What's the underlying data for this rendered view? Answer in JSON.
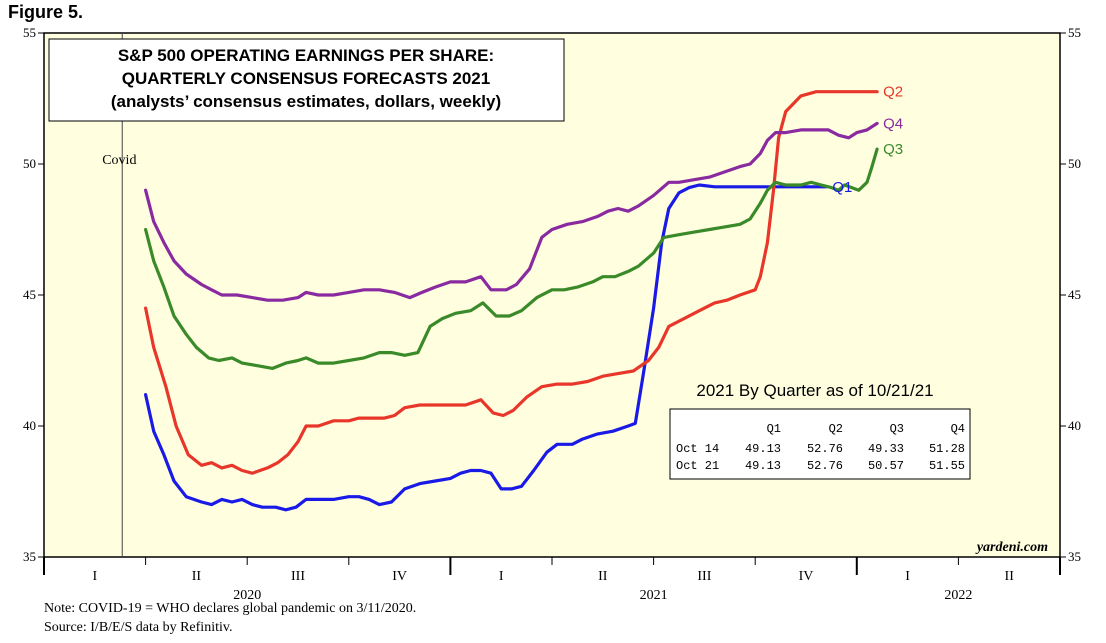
{
  "figure_label": "Figure 5.",
  "colors": {
    "q1": "#1a1ae6",
    "q2": "#e8372a",
    "q3": "#3a8a2a",
    "q4": "#8a2aa0",
    "plot_bg": "#ffffe0"
  },
  "chart_data": {
    "type": "line",
    "title_lines": [
      "S&P 500 OPERATING EARNINGS PER SHARE:",
      "QUARTERLY CONSENSUS FORECASTS 2021",
      "(analysts’ consensus estimates, dollars, weekly)"
    ],
    "ylim": [
      35,
      55
    ],
    "yticks": [
      35,
      40,
      45,
      50,
      55
    ],
    "x_unit": "quarter index (0 = start of Q1 2020)",
    "xlim": [
      0,
      10
    ],
    "quarter_labels": [
      "I",
      "II",
      "III",
      "IV",
      "I",
      "II",
      "III",
      "IV",
      "I",
      "II"
    ],
    "year_labels": [
      {
        "label": "2020",
        "x": 2
      },
      {
        "label": "2021",
        "x": 6
      },
      {
        "label": "2022",
        "x": 9
      }
    ],
    "annotation": {
      "text": "Covid",
      "x": 0.77
    },
    "watermark": "yardeni.com",
    "series": [
      {
        "name": "Q1",
        "color_key": "q1",
        "points": [
          [
            1.0,
            41.2
          ],
          [
            1.08,
            39.8
          ],
          [
            1.18,
            38.9
          ],
          [
            1.28,
            37.9
          ],
          [
            1.4,
            37.3
          ],
          [
            1.55,
            37.1
          ],
          [
            1.65,
            37.0
          ],
          [
            1.75,
            37.2
          ],
          [
            1.85,
            37.1
          ],
          [
            1.95,
            37.2
          ],
          [
            2.05,
            37.0
          ],
          [
            2.15,
            36.9
          ],
          [
            2.28,
            36.9
          ],
          [
            2.38,
            36.8
          ],
          [
            2.48,
            36.9
          ],
          [
            2.58,
            37.2
          ],
          [
            2.7,
            37.2
          ],
          [
            2.85,
            37.2
          ],
          [
            3.0,
            37.3
          ],
          [
            3.1,
            37.3
          ],
          [
            3.2,
            37.2
          ],
          [
            3.3,
            37.0
          ],
          [
            3.42,
            37.1
          ],
          [
            3.55,
            37.6
          ],
          [
            3.7,
            37.8
          ],
          [
            3.85,
            37.9
          ],
          [
            4.0,
            38.0
          ],
          [
            4.1,
            38.2
          ],
          [
            4.2,
            38.3
          ],
          [
            4.3,
            38.3
          ],
          [
            4.4,
            38.2
          ],
          [
            4.5,
            37.6
          ],
          [
            4.6,
            37.6
          ],
          [
            4.7,
            37.7
          ],
          [
            4.82,
            38.3
          ],
          [
            4.95,
            39.0
          ],
          [
            5.05,
            39.3
          ],
          [
            5.2,
            39.3
          ],
          [
            5.3,
            39.5
          ],
          [
            5.45,
            39.7
          ],
          [
            5.6,
            39.8
          ],
          [
            5.75,
            40.0
          ],
          [
            5.82,
            40.1
          ],
          [
            5.9,
            42.0
          ],
          [
            6.0,
            44.5
          ],
          [
            6.08,
            47.0
          ],
          [
            6.15,
            48.3
          ],
          [
            6.25,
            48.9
          ],
          [
            6.35,
            49.1
          ],
          [
            6.45,
            49.2
          ],
          [
            6.6,
            49.13
          ],
          [
            6.8,
            49.13
          ],
          [
            7.0,
            49.13
          ],
          [
            7.2,
            49.13
          ],
          [
            7.45,
            49.13
          ],
          [
            7.6,
            49.13
          ],
          [
            7.7,
            49.13
          ]
        ]
      },
      {
        "name": "Q2",
        "color_key": "q2",
        "points": [
          [
            1.0,
            44.5
          ],
          [
            1.08,
            43.0
          ],
          [
            1.2,
            41.5
          ],
          [
            1.3,
            40.0
          ],
          [
            1.42,
            38.9
          ],
          [
            1.55,
            38.5
          ],
          [
            1.65,
            38.6
          ],
          [
            1.75,
            38.4
          ],
          [
            1.85,
            38.5
          ],
          [
            1.95,
            38.3
          ],
          [
            2.05,
            38.2
          ],
          [
            2.2,
            38.4
          ],
          [
            2.3,
            38.6
          ],
          [
            2.4,
            38.9
          ],
          [
            2.5,
            39.4
          ],
          [
            2.58,
            40.0
          ],
          [
            2.7,
            40.0
          ],
          [
            2.85,
            40.2
          ],
          [
            3.0,
            40.2
          ],
          [
            3.1,
            40.3
          ],
          [
            3.2,
            40.3
          ],
          [
            3.35,
            40.3
          ],
          [
            3.45,
            40.4
          ],
          [
            3.55,
            40.7
          ],
          [
            3.7,
            40.8
          ],
          [
            3.85,
            40.8
          ],
          [
            4.0,
            40.8
          ],
          [
            4.15,
            40.8
          ],
          [
            4.3,
            41.0
          ],
          [
            4.42,
            40.5
          ],
          [
            4.52,
            40.4
          ],
          [
            4.62,
            40.6
          ],
          [
            4.75,
            41.1
          ],
          [
            4.9,
            41.5
          ],
          [
            5.05,
            41.6
          ],
          [
            5.2,
            41.6
          ],
          [
            5.35,
            41.7
          ],
          [
            5.5,
            41.9
          ],
          [
            5.65,
            42.0
          ],
          [
            5.8,
            42.1
          ],
          [
            5.95,
            42.5
          ],
          [
            6.05,
            43.0
          ],
          [
            6.15,
            43.8
          ],
          [
            6.3,
            44.1
          ],
          [
            6.45,
            44.4
          ],
          [
            6.6,
            44.7
          ],
          [
            6.72,
            44.8
          ],
          [
            6.85,
            45.0
          ],
          [
            7.0,
            45.2
          ],
          [
            7.05,
            45.7
          ],
          [
            7.12,
            47.0
          ],
          [
            7.18,
            49.0
          ],
          [
            7.23,
            51.0
          ],
          [
            7.3,
            52.0
          ],
          [
            7.45,
            52.6
          ],
          [
            7.6,
            52.76
          ],
          [
            7.75,
            52.76
          ],
          [
            7.9,
            52.76
          ],
          [
            8.1,
            52.76
          ],
          [
            8.2,
            52.76
          ]
        ]
      },
      {
        "name": "Q3",
        "color_key": "q3",
        "points": [
          [
            1.0,
            47.5
          ],
          [
            1.08,
            46.3
          ],
          [
            1.18,
            45.3
          ],
          [
            1.28,
            44.2
          ],
          [
            1.4,
            43.5
          ],
          [
            1.5,
            43.0
          ],
          [
            1.62,
            42.6
          ],
          [
            1.72,
            42.5
          ],
          [
            1.85,
            42.6
          ],
          [
            1.95,
            42.4
          ],
          [
            2.1,
            42.3
          ],
          [
            2.25,
            42.2
          ],
          [
            2.38,
            42.4
          ],
          [
            2.5,
            42.5
          ],
          [
            2.58,
            42.6
          ],
          [
            2.7,
            42.4
          ],
          [
            2.85,
            42.4
          ],
          [
            3.0,
            42.5
          ],
          [
            3.15,
            42.6
          ],
          [
            3.3,
            42.8
          ],
          [
            3.42,
            42.8
          ],
          [
            3.55,
            42.7
          ],
          [
            3.68,
            42.8
          ],
          [
            3.8,
            43.8
          ],
          [
            3.92,
            44.1
          ],
          [
            4.05,
            44.3
          ],
          [
            4.2,
            44.4
          ],
          [
            4.32,
            44.7
          ],
          [
            4.45,
            44.2
          ],
          [
            4.58,
            44.2
          ],
          [
            4.7,
            44.4
          ],
          [
            4.85,
            44.9
          ],
          [
            5.0,
            45.2
          ],
          [
            5.12,
            45.2
          ],
          [
            5.25,
            45.3
          ],
          [
            5.4,
            45.5
          ],
          [
            5.5,
            45.7
          ],
          [
            5.62,
            45.7
          ],
          [
            5.75,
            45.9
          ],
          [
            5.85,
            46.1
          ],
          [
            6.0,
            46.6
          ],
          [
            6.1,
            47.2
          ],
          [
            6.25,
            47.3
          ],
          [
            6.4,
            47.4
          ],
          [
            6.55,
            47.5
          ],
          [
            6.7,
            47.6
          ],
          [
            6.85,
            47.7
          ],
          [
            6.95,
            47.9
          ],
          [
            7.05,
            48.5
          ],
          [
            7.12,
            49.0
          ],
          [
            7.2,
            49.3
          ],
          [
            7.3,
            49.2
          ],
          [
            7.45,
            49.2
          ],
          [
            7.55,
            49.3
          ],
          [
            7.65,
            49.2
          ],
          [
            7.75,
            49.1
          ],
          [
            7.82,
            49.0
          ],
          [
            7.88,
            49.2
          ],
          [
            7.95,
            49.1
          ],
          [
            8.02,
            49.0
          ],
          [
            8.1,
            49.3
          ],
          [
            8.15,
            49.9
          ],
          [
            8.2,
            50.57
          ]
        ]
      },
      {
        "name": "Q4",
        "color_key": "q4",
        "points": [
          [
            1.0,
            49.0
          ],
          [
            1.08,
            47.8
          ],
          [
            1.18,
            47.0
          ],
          [
            1.28,
            46.3
          ],
          [
            1.4,
            45.8
          ],
          [
            1.55,
            45.4
          ],
          [
            1.65,
            45.2
          ],
          [
            1.75,
            45.0
          ],
          [
            1.9,
            45.0
          ],
          [
            2.05,
            44.9
          ],
          [
            2.2,
            44.8
          ],
          [
            2.35,
            44.8
          ],
          [
            2.5,
            44.9
          ],
          [
            2.58,
            45.1
          ],
          [
            2.7,
            45.0
          ],
          [
            2.85,
            45.0
          ],
          [
            3.0,
            45.1
          ],
          [
            3.15,
            45.2
          ],
          [
            3.3,
            45.2
          ],
          [
            3.45,
            45.1
          ],
          [
            3.6,
            44.9
          ],
          [
            3.72,
            45.1
          ],
          [
            3.85,
            45.3
          ],
          [
            4.0,
            45.5
          ],
          [
            4.15,
            45.5
          ],
          [
            4.3,
            45.7
          ],
          [
            4.4,
            45.2
          ],
          [
            4.55,
            45.2
          ],
          [
            4.65,
            45.4
          ],
          [
            4.78,
            46.0
          ],
          [
            4.9,
            47.2
          ],
          [
            5.0,
            47.5
          ],
          [
            5.15,
            47.7
          ],
          [
            5.3,
            47.8
          ],
          [
            5.45,
            48.0
          ],
          [
            5.55,
            48.2
          ],
          [
            5.65,
            48.3
          ],
          [
            5.75,
            48.2
          ],
          [
            5.85,
            48.4
          ],
          [
            6.0,
            48.8
          ],
          [
            6.15,
            49.3
          ],
          [
            6.25,
            49.3
          ],
          [
            6.4,
            49.4
          ],
          [
            6.55,
            49.5
          ],
          [
            6.7,
            49.7
          ],
          [
            6.85,
            49.9
          ],
          [
            6.95,
            50.0
          ],
          [
            7.05,
            50.4
          ],
          [
            7.12,
            50.9
          ],
          [
            7.2,
            51.2
          ],
          [
            7.3,
            51.2
          ],
          [
            7.45,
            51.3
          ],
          [
            7.6,
            51.3
          ],
          [
            7.72,
            51.3
          ],
          [
            7.82,
            51.1
          ],
          [
            7.92,
            51.0
          ],
          [
            8.0,
            51.2
          ],
          [
            8.1,
            51.3
          ],
          [
            8.2,
            51.55
          ]
        ]
      }
    ],
    "table": {
      "title": "2021 By Quarter as of 10/21/21",
      "headers": [
        "",
        "Q1",
        "Q2",
        "Q3",
        "Q4"
      ],
      "rows": [
        [
          "Oct 14",
          "49.13",
          "52.76",
          "49.33",
          "51.28"
        ],
        [
          "Oct 21",
          "49.13",
          "52.76",
          "50.57",
          "51.55"
        ]
      ]
    }
  },
  "notes": {
    "line1": "Note: COVID-19 = WHO declares global pandemic on 3/11/2020.",
    "line2": "Source: I/B/E/S data by Refinitiv."
  }
}
